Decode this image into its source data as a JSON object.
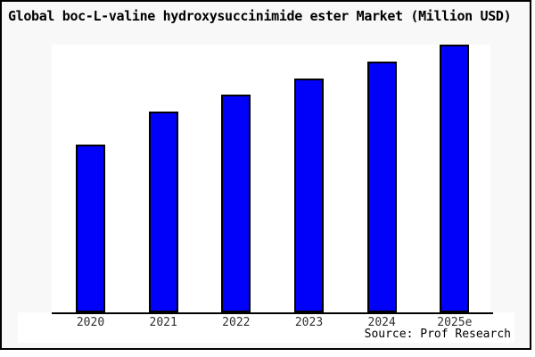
{
  "window": {
    "background_color": "#f8f8f8",
    "border_color": "#000000",
    "panel_color": "#ffffff"
  },
  "chart_data": {
    "type": "bar",
    "title": "Global boc-L-valine hydroxysuccinimide ester Market (Million USD)",
    "categories": [
      "2020",
      "2021",
      "2022",
      "2023",
      "2024",
      "2025e"
    ],
    "values": [
      62.7,
      75.0,
      81.3,
      87.3,
      93.7,
      100.0
    ],
    "value_note": "no y-axis ticks or data labels shown; values estimated from bar heights normalized to 2025e = 100",
    "xlabel": "",
    "ylabel": "",
    "ylim": [
      0,
      100
    ],
    "grid": false,
    "legend": false,
    "bar_color": "#0101fa",
    "bar_border_color": "#000000",
    "tick_label_color": "#303030",
    "source": "Source: Prof Research"
  }
}
